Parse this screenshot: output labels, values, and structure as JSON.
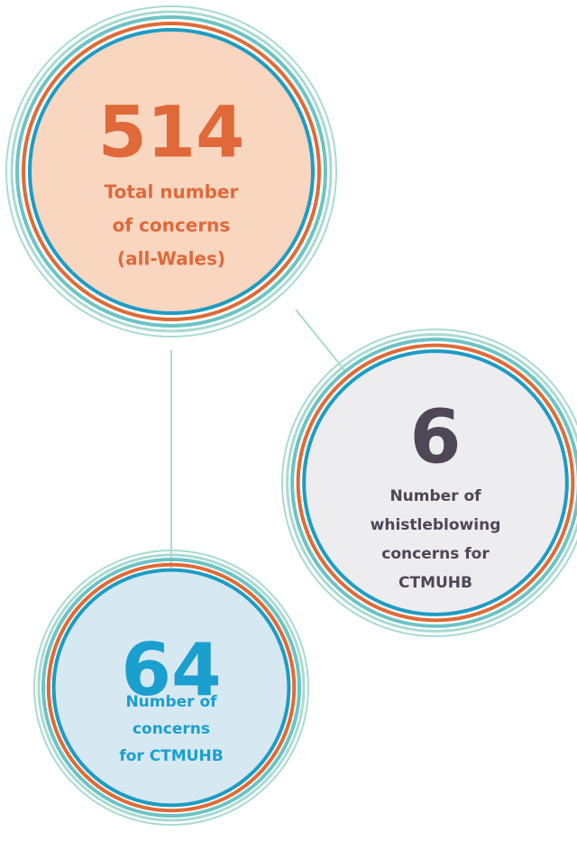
{
  "nodes": [
    {
      "value": "514",
      "label": [
        "Total number",
        "of concerns",
        "(all-Wales)"
      ]
    },
    {
      "value": "6",
      "label": [
        "Number of",
        "whistleblowing",
        "concerns for",
        "CTMUHB"
      ]
    },
    {
      "value": "64",
      "label": [
        "Number of",
        "concerns",
        "for CTMUHB"
      ]
    }
  ]
}
